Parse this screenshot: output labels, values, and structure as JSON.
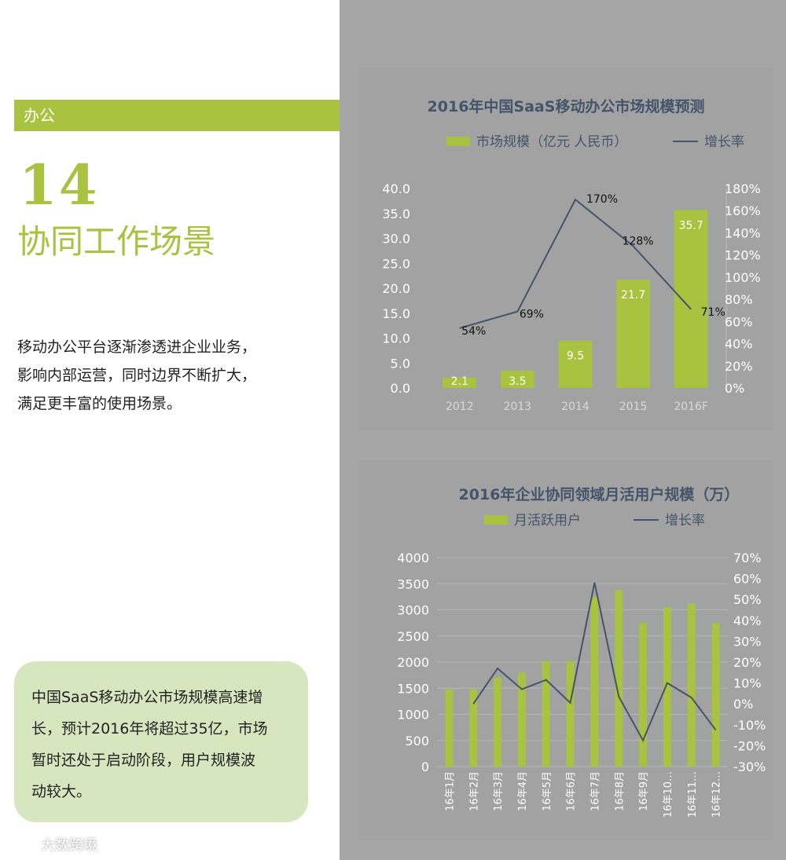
{
  "section": {
    "tag": "办公",
    "number": "14",
    "title": "协同工作场景"
  },
  "intro_lines": [
    "移动办公平台逐渐渗透进企业业务，",
    "影响内部运营，同时边界不断扩大，",
    "满足更丰富的使用场景。"
  ],
  "summary_lines": [
    "中国SaaS移动办公市场规模高速增",
    "长，预计2016年将超过35亿，市场",
    "暂时还处于启动阶段，用户规模波",
    "动较大。"
  ],
  "watermark": "大数跨境",
  "colors": {
    "accent": "#a9c23f",
    "bar": "#a9c23f",
    "line": "#44546a",
    "title": "#44546a"
  },
  "chart_data": [
    {
      "type": "bar",
      "title": "2016年中国SaaS移动办公市场规模预测",
      "categories": [
        "2012",
        "2013",
        "2014",
        "2015",
        "2016F"
      ],
      "series": [
        {
          "name": "市场规模（亿元 人民币）",
          "kind": "bar",
          "values": [
            2.1,
            3.5,
            9.5,
            21.7,
            35.7
          ],
          "labels": [
            "2.1",
            "3.5",
            "9.5",
            "21.7",
            "35.7"
          ]
        },
        {
          "name": "增长率",
          "kind": "line",
          "values": [
            54,
            69,
            170,
            128,
            71
          ],
          "labels": [
            "54%",
            "69%",
            "170%",
            "128%",
            "71%"
          ]
        }
      ],
      "y_ticks": [
        "0.0",
        "5.0",
        "10.0",
        "15.0",
        "20.0",
        "25.0",
        "30.0",
        "35.0",
        "40.0"
      ],
      "y2_ticks": [
        "0%",
        "20%",
        "40%",
        "60%",
        "80%",
        "100%",
        "120%",
        "140%",
        "160%",
        "180%"
      ],
      "ylim": [
        0,
        40
      ],
      "y2lim": [
        0,
        180
      ],
      "grid": false,
      "legend": "top"
    },
    {
      "type": "bar",
      "title": "2016年企业协同领域月活用户规模（万）",
      "categories": [
        "16年1月",
        "16年2月",
        "16年3月",
        "16年4月",
        "16年5月",
        "16年6月",
        "16年7月",
        "16年8月",
        "16年9月",
        "16年10…",
        "16年11…",
        "16年12…"
      ],
      "series": [
        {
          "name": "月活跃用户",
          "kind": "bar",
          "values": [
            1480,
            1480,
            1700,
            1800,
            2020,
            2020,
            3250,
            3380,
            2750,
            3050,
            3130,
            2750
          ]
        },
        {
          "name": "增长率",
          "kind": "line",
          "values": [
            null,
            0,
            17,
            7,
            11.5,
            0.5,
            58,
            3.5,
            -17.5,
            10,
            3,
            -12.5
          ]
        }
      ],
      "y_ticks": [
        "0",
        "500",
        "1000",
        "1500",
        "2000",
        "2500",
        "3000",
        "3500",
        "4000"
      ],
      "y2_ticks": [
        "-30%",
        "-20%",
        "-10%",
        "0%",
        "10%",
        "20%",
        "30%",
        "40%",
        "50%",
        "60%",
        "70%"
      ],
      "ylim": [
        0,
        4000
      ],
      "y2lim": [
        -30,
        70
      ],
      "grid": true,
      "legend": "top"
    }
  ]
}
